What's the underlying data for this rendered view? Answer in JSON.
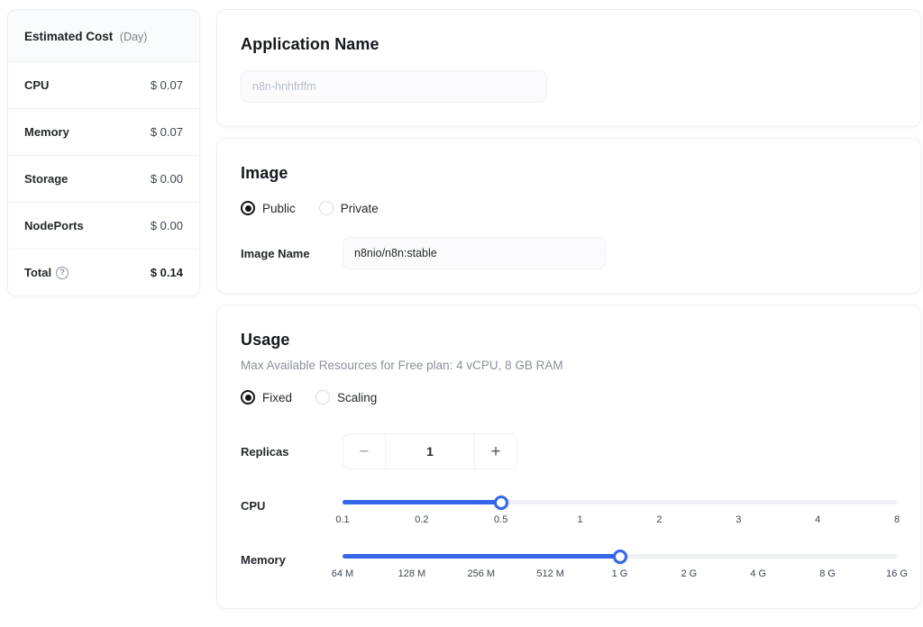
{
  "colors": {
    "accent": "#3565eb",
    "radio_selected": "#141519",
    "track": "#eef0f4"
  },
  "sidebar": {
    "title": "Estimated Cost",
    "title_suffix": "(Day)",
    "rows": [
      {
        "label": "CPU",
        "value": "$ 0.07"
      },
      {
        "label": "Memory",
        "value": "$ 0.07"
      },
      {
        "label": "Storage",
        "value": "$ 0.00"
      },
      {
        "label": "NodePorts",
        "value": "$ 0.00"
      }
    ],
    "total": {
      "label": "Total",
      "help_icon": "question-circle-icon",
      "help_glyph": "?",
      "value": "$ 0.14"
    }
  },
  "app_name_card": {
    "title": "Application Name",
    "input_value": "",
    "input_placeholder": "n8n-hnhfrffm"
  },
  "image_card": {
    "title": "Image",
    "visibility": {
      "options": [
        "Public",
        "Private"
      ],
      "selected": "Public"
    },
    "image_name": {
      "label": "Image Name",
      "value": "n8nio/n8n:stable"
    }
  },
  "usage_card": {
    "title": "Usage",
    "subtitle": "Max Available Resources for Free plan: 4 vCPU, 8 GB RAM",
    "mode": {
      "options": [
        "Fixed",
        "Scaling"
      ],
      "selected": "Fixed"
    },
    "replicas": {
      "label": "Replicas",
      "value": "1",
      "decrease_glyph": "−",
      "increase_glyph": "+"
    },
    "cpu_slider": {
      "label": "CPU",
      "ticks": [
        "0.1",
        "0.2",
        "0.5",
        "1",
        "2",
        "3",
        "4",
        "8"
      ],
      "value": "0.5"
    },
    "memory_slider": {
      "label": "Memory",
      "ticks": [
        "64 M",
        "128 M",
        "256 M",
        "512 M",
        "1 G",
        "2 G",
        "4 G",
        "8 G",
        "16 G"
      ],
      "value": "1 G"
    }
  }
}
